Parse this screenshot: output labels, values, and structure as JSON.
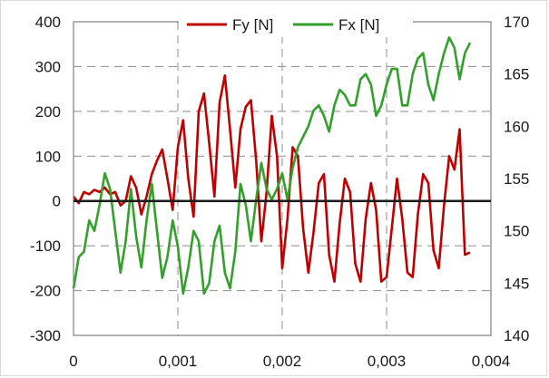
{
  "chart_data": {
    "type": "line",
    "title": "",
    "xlabel": "",
    "ylabel": "",
    "y2label": "",
    "xlim": [
      0,
      0.004
    ],
    "ylim": [
      -300,
      400
    ],
    "y2lim": [
      140,
      170
    ],
    "x_ticks": [
      "0",
      "0,001",
      "0,002",
      "0,003",
      "0,004"
    ],
    "y_ticks": [
      "400",
      "300",
      "200",
      "100",
      "0",
      "-100",
      "-200",
      "-300"
    ],
    "y2_ticks": [
      "170",
      "165",
      "160",
      "155",
      "150",
      "145",
      "140"
    ],
    "grid": "dashed",
    "legend": "top-center",
    "series": [
      {
        "name": "Fy [N]",
        "axis": "left",
        "color": "#c00000",
        "x": [
          0,
          5e-05,
          0.0001,
          0.00015,
          0.0002,
          0.00025,
          0.0003,
          0.00035,
          0.0004,
          0.00045,
          0.0005,
          0.00055,
          0.0006,
          0.00065,
          0.0007,
          0.00075,
          0.0008,
          0.00085,
          0.0009,
          0.00095,
          0.001,
          0.00105,
          0.0011,
          0.00115,
          0.0012,
          0.00125,
          0.0013,
          0.00135,
          0.0014,
          0.00145,
          0.0015,
          0.00155,
          0.0016,
          0.00165,
          0.0017,
          0.00175,
          0.0018,
          0.00185,
          0.0019,
          0.00195,
          0.002,
          0.00205,
          0.0021,
          0.00215,
          0.0022,
          0.00225,
          0.0023,
          0.00235,
          0.0024,
          0.00245,
          0.0025,
          0.00255,
          0.0026,
          0.00265,
          0.0027,
          0.00275,
          0.0028,
          0.00285,
          0.0029,
          0.00295,
          0.003,
          0.00305,
          0.0031,
          0.00315,
          0.0032,
          0.00325,
          0.0033,
          0.00335,
          0.0034,
          0.00345,
          0.0035,
          0.00355,
          0.0036,
          0.00365,
          0.0037,
          0.00375,
          0.0038
        ],
        "values": [
          10,
          -5,
          20,
          15,
          25,
          20,
          30,
          15,
          20,
          -10,
          0,
          55,
          30,
          -30,
          10,
          60,
          90,
          115,
          50,
          -20,
          120,
          180,
          50,
          -35,
          200,
          240,
          130,
          10,
          220,
          280,
          160,
          30,
          160,
          210,
          225,
          90,
          -90,
          20,
          190,
          100,
          -150,
          -40,
          120,
          100,
          -60,
          -160,
          -70,
          40,
          60,
          -120,
          -180,
          -50,
          50,
          20,
          -140,
          -180,
          -40,
          40,
          -20,
          -180,
          -170,
          -60,
          50,
          -40,
          -160,
          -170,
          -30,
          60,
          40,
          -110,
          -150,
          -10,
          100,
          70,
          160,
          -120,
          -115
        ]
      },
      {
        "name": "Fx [N]",
        "axis": "right",
        "color": "#33a02c",
        "x": [
          0,
          5e-05,
          0.0001,
          0.00015,
          0.0002,
          0.00025,
          0.0003,
          0.00035,
          0.0004,
          0.00045,
          0.0005,
          0.00055,
          0.0006,
          0.00065,
          0.0007,
          0.00075,
          0.0008,
          0.00085,
          0.0009,
          0.00095,
          0.001,
          0.00105,
          0.0011,
          0.00115,
          0.0012,
          0.00125,
          0.0013,
          0.00135,
          0.0014,
          0.00145,
          0.0015,
          0.00155,
          0.0016,
          0.00165,
          0.0017,
          0.00175,
          0.0018,
          0.00185,
          0.0019,
          0.00195,
          0.002,
          0.00205,
          0.0021,
          0.00215,
          0.0022,
          0.00225,
          0.0023,
          0.00235,
          0.0024,
          0.00245,
          0.0025,
          0.00255,
          0.0026,
          0.00265,
          0.0027,
          0.00275,
          0.0028,
          0.00285,
          0.0029,
          0.00295,
          0.003,
          0.00305,
          0.0031,
          0.00315,
          0.0032,
          0.00325,
          0.0033,
          0.00335,
          0.0034,
          0.00345,
          0.0035,
          0.00355,
          0.0036,
          0.00365,
          0.0037,
          0.00375,
          0.0038
        ],
        "values": [
          144.5,
          147.5,
          148,
          151,
          150,
          152.5,
          155.5,
          154,
          150,
          146,
          149,
          154,
          149.5,
          146.5,
          151,
          154.5,
          150,
          145.5,
          147.5,
          151,
          148.5,
          144,
          146.5,
          150,
          149,
          144,
          145,
          149,
          150.5,
          146,
          144.5,
          148,
          154.5,
          152.5,
          149,
          153,
          156.5,
          154,
          153,
          154,
          155.5,
          153,
          156,
          158,
          159,
          160,
          161.5,
          162,
          161,
          159.5,
          162,
          163.5,
          163,
          162,
          162,
          164.5,
          165,
          164,
          161,
          162,
          164,
          165.5,
          165.5,
          162,
          162,
          165,
          166.5,
          167,
          164,
          162.5,
          165,
          167,
          168.5,
          167.5,
          164.5,
          167,
          168
        ]
      }
    ]
  }
}
